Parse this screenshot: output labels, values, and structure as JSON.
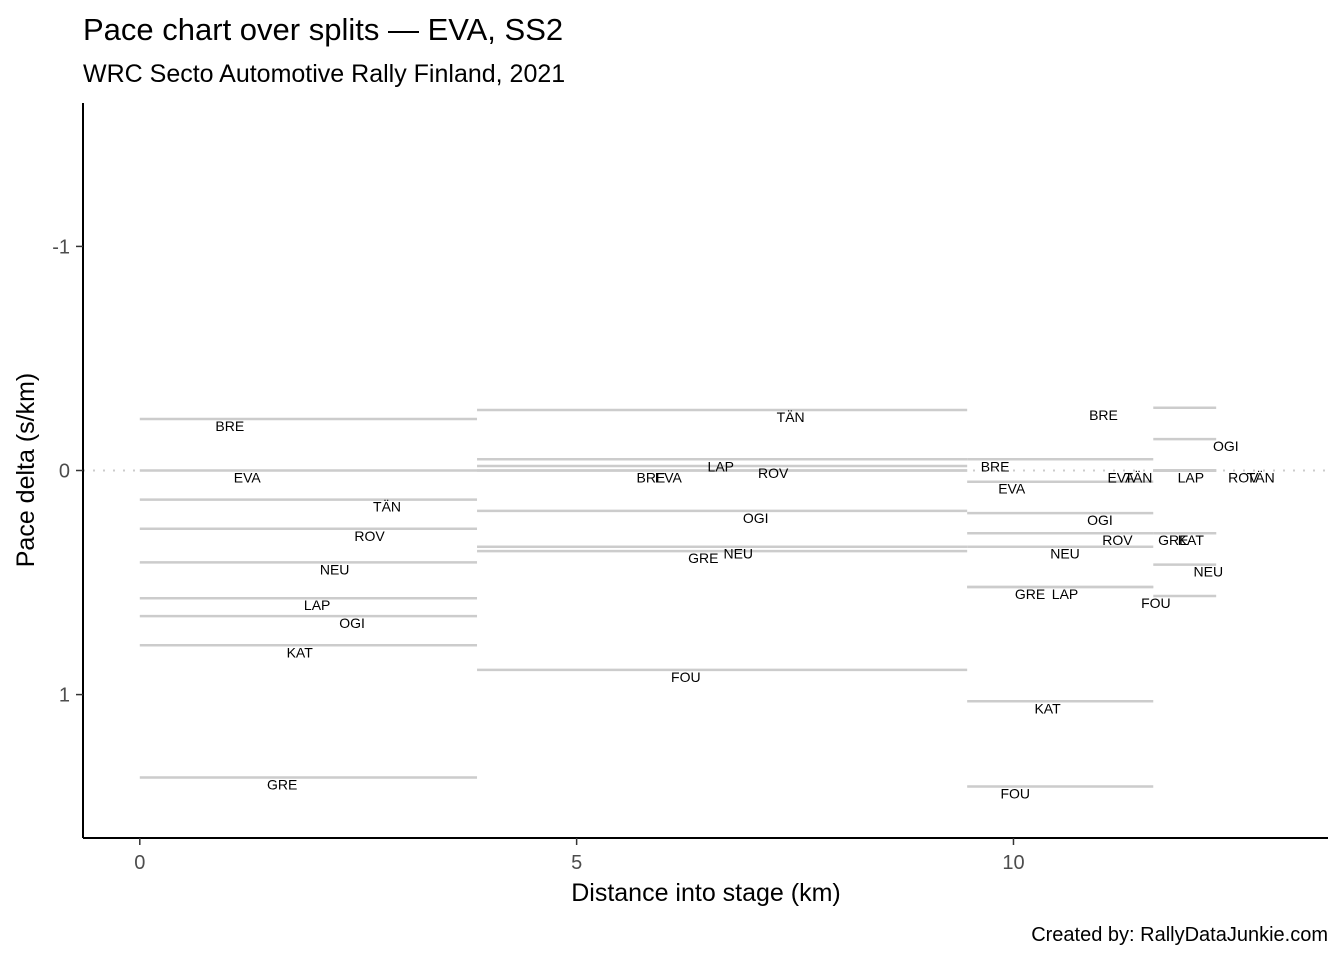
{
  "chart_data": {
    "type": "line",
    "title": "Pace chart over splits — EVA, SS2",
    "subtitle": "WRC Secto Automotive Rally Finland, 2021",
    "xlabel": "Distance into stage (km)",
    "ylabel": "Pace delta (s/km)",
    "caption": "Created by: RallyDataJunkie.com",
    "xlim": [
      -0.65,
      13.6
    ],
    "ylim": [
      1.64,
      -1.64
    ],
    "y_reversed": true,
    "x_ticks": [
      0,
      5,
      10
    ],
    "y_ticks": [
      -1,
      0,
      1
    ],
    "reference_line": 0,
    "splits": [
      {
        "start": 0,
        "end": 3.86,
        "series": [
          {
            "name": "BRE",
            "pace": -0.23,
            "label_x": 1.03
          },
          {
            "name": "EVA",
            "pace": 0.0,
            "label_x": 1.23
          },
          {
            "name": "TÄN",
            "pace": 0.13,
            "label_x": 2.83
          },
          {
            "name": "ROV",
            "pace": 0.26,
            "label_x": 2.63
          },
          {
            "name": "NEU",
            "pace": 0.41,
            "label_x": 2.23
          },
          {
            "name": "LAP",
            "pace": 0.57,
            "label_x": 2.03
          },
          {
            "name": "OGI",
            "pace": 0.65,
            "label_x": 2.43
          },
          {
            "name": "KAT",
            "pace": 0.78,
            "label_x": 1.83
          },
          {
            "name": "GRE",
            "pace": 1.37,
            "label_x": 1.63
          }
        ]
      },
      {
        "start": 3.86,
        "end": 9.47,
        "series": [
          {
            "name": "TÄN",
            "pace": -0.27,
            "label_x": 7.45
          },
          {
            "name": "LAP",
            "pace": -0.05,
            "label_x": 6.65
          },
          {
            "name": "ROV",
            "pace": -0.02,
            "label_x": 7.25
          },
          {
            "name": "BRE",
            "pace": 0.0,
            "label_x": 5.85
          },
          {
            "name": "EVA",
            "pace": 0.0,
            "label_x": 6.05
          },
          {
            "name": "OGI",
            "pace": 0.18,
            "label_x": 7.05
          },
          {
            "name": "NEU",
            "pace": 0.34,
            "label_x": 6.85
          },
          {
            "name": "GRE",
            "pace": 0.36,
            "label_x": 6.45
          },
          {
            "name": "FOU",
            "pace": 0.89,
            "label_x": 6.25
          }
        ]
      },
      {
        "start": 9.47,
        "end": 11.6,
        "series": [
          {
            "name": "BRE",
            "pace": -0.05,
            "label_x": 9.79
          },
          {
            "name": "EVA",
            "pace": 0.05,
            "label_x": 9.98
          },
          {
            "name": "OGI",
            "pace": 0.19,
            "label_x": 10.99
          },
          {
            "name": "NEU",
            "pace": 0.34,
            "label_x": 10.59
          },
          {
            "name": "ROV",
            "pace": 0.28,
            "label_x": 11.19
          },
          {
            "name": "GRE",
            "pace": 0.52,
            "label_x": 10.19
          },
          {
            "name": "LAP",
            "pace": 0.52,
            "label_x": 10.59
          },
          {
            "name": "KAT",
            "pace": 1.03,
            "label_x": 10.39
          },
          {
            "name": "FOU",
            "pace": 1.41,
            "label_x": 10.02
          }
        ]
      },
      {
        "start": 11.6,
        "end": 12.32,
        "series": [
          {
            "name": "BRE",
            "pace": -0.28,
            "label_x": 11.03
          },
          {
            "name": "OGI",
            "pace": -0.14,
            "label_x": 12.43
          },
          {
            "name": "EVA",
            "pace": 0.0,
            "label_x": 11.23
          },
          {
            "name": "TÄN",
            "pace": 0.0,
            "label_x": 11.43
          },
          {
            "name": "LAP",
            "pace": 0.0,
            "label_x": 12.03
          },
          {
            "name": "ROV",
            "pace": 0.0,
            "label_x": 12.63
          },
          {
            "name": "TÄN",
            "pace": 0.0,
            "label_x": 12.83
          },
          {
            "name": "GRE",
            "pace": 0.28,
            "label_x": 11.83
          },
          {
            "name": "KAT",
            "pace": 0.28,
            "label_x": 12.03
          },
          {
            "name": "NEU",
            "pace": 0.42,
            "label_x": 12.23
          },
          {
            "name": "FOU",
            "pace": 0.56,
            "label_x": 11.63
          }
        ]
      }
    ]
  }
}
